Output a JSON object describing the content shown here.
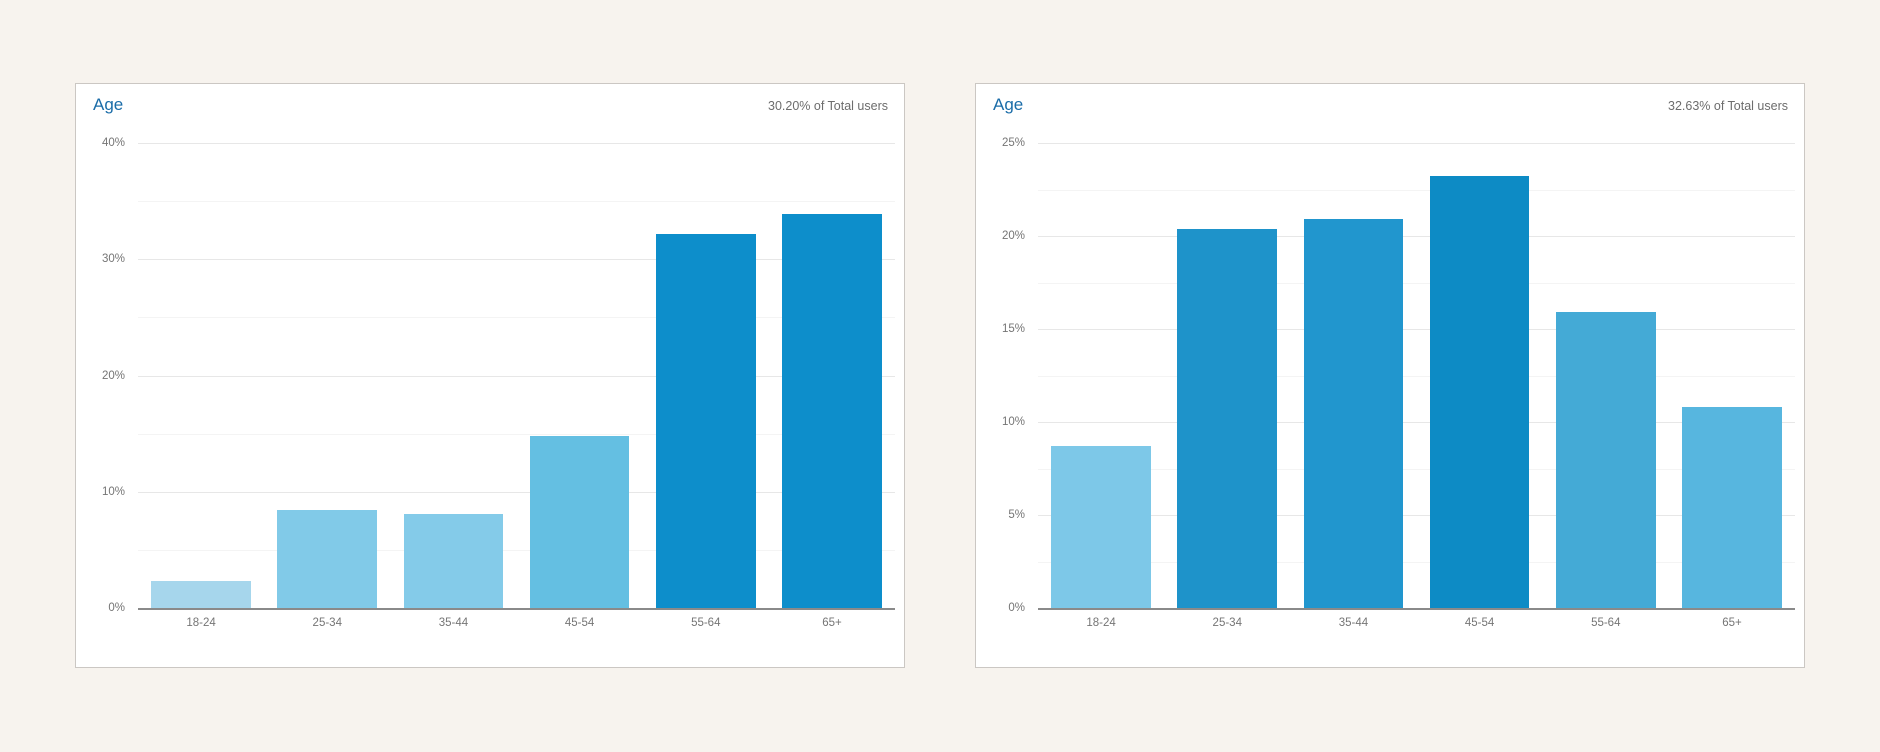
{
  "page": {
    "background_color": "#f7f3ee",
    "card_background_color": "#ffffff",
    "card_border_color": "#cbc7c3",
    "title_link_color": "#1a6ca8",
    "subtitle_color": "#6d6d6d",
    "axis_text_color": "#757575",
    "baseline_color": "#8a8a8a"
  },
  "chart_data": [
    {
      "type": "bar",
      "title": "Age",
      "subtitle": "30.20% of Total users",
      "categories": [
        "18-24",
        "25-34",
        "35-44",
        "45-54",
        "55-64",
        "65+"
      ],
      "values": [
        2.3,
        8.4,
        8.1,
        14.8,
        32.2,
        33.9
      ],
      "unit": "%",
      "xlabel": "",
      "ylabel": "",
      "ylim": [
        0,
        40
      ],
      "yticks": [
        {
          "v": 0,
          "label": "0%"
        },
        {
          "v": 10,
          "label": "10%"
        },
        {
          "v": 20,
          "label": "20%"
        },
        {
          "v": 30,
          "label": "30%"
        },
        {
          "v": 40,
          "label": "40%"
        }
      ],
      "yticks_minor": [
        5,
        15,
        25,
        35
      ],
      "bar_colors": [
        "#a6d6ec",
        "#81cae8",
        "#84cbe9",
        "#64bfe2",
        "#0d8ecb",
        "#0d8ecb"
      ],
      "grid": true,
      "legend": false
    },
    {
      "type": "bar",
      "title": "Age",
      "subtitle": "32.63% of Total users",
      "categories": [
        "18-24",
        "25-34",
        "35-44",
        "45-54",
        "55-64",
        "65+"
      ],
      "values": [
        8.7,
        20.4,
        20.9,
        23.2,
        15.9,
        10.8
      ],
      "unit": "%",
      "xlabel": "",
      "ylabel": "",
      "ylim": [
        0,
        25
      ],
      "yticks": [
        {
          "v": 0,
          "label": "0%"
        },
        {
          "v": 5,
          "label": "5%"
        },
        {
          "v": 10,
          "label": "10%"
        },
        {
          "v": 15,
          "label": "15%"
        },
        {
          "v": 20,
          "label": "20%"
        },
        {
          "v": 25,
          "label": "25%"
        }
      ],
      "yticks_minor": [
        2.5,
        7.5,
        12.5,
        17.5,
        22.5
      ],
      "bar_colors": [
        "#7dc8e8",
        "#1e93ca",
        "#2196ce",
        "#0d8bc5",
        "#44aad6",
        "#57b6df"
      ],
      "grid": true,
      "legend": false
    }
  ]
}
